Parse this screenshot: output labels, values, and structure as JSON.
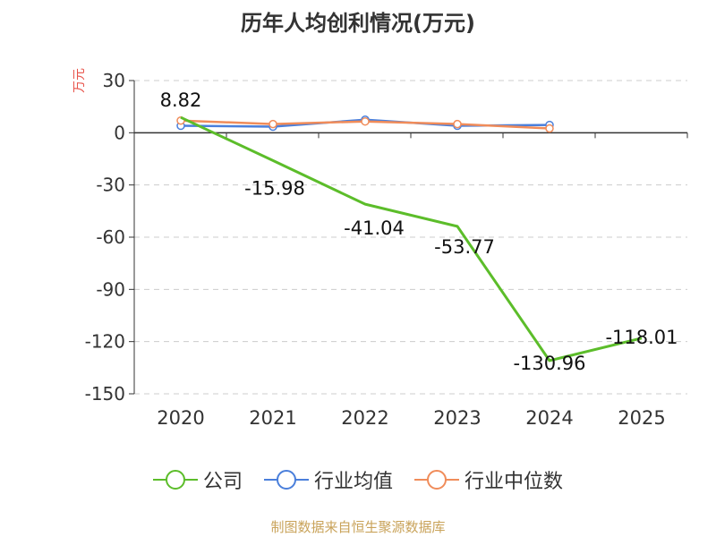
{
  "chart_data": {
    "type": "line",
    "title": "历年人均创利情况(万元)",
    "ylabel": "万元",
    "categories": [
      "2020",
      "2021",
      "2022",
      "2023",
      "2024",
      "2025"
    ],
    "ylim": [
      -150,
      30
    ],
    "yticks": [
      "30",
      "0",
      "-30",
      "-60",
      "-90",
      "-120",
      "-150"
    ],
    "grid": true,
    "legend_position": "bottom",
    "series": [
      {
        "name": "公司",
        "color": "#5cbd2a",
        "values": [
          8.82,
          -15.98,
          -41.04,
          -53.77,
          -130.96,
          -118.01
        ],
        "labels": [
          "8.82",
          "-15.98",
          "-41.04",
          "-53.77",
          "-130.96",
          "-118.01"
        ]
      },
      {
        "name": "行业均值",
        "color": "#4a7fdb",
        "values": [
          4.0,
          3.5,
          7.5,
          4.0,
          4.5,
          null
        ]
      },
      {
        "name": "行业中位数",
        "color": "#f08c5a",
        "values": [
          7.0,
          5.0,
          6.5,
          5.0,
          2.5,
          null
        ]
      }
    ]
  },
  "footer": {
    "source": "制图数据来自恒生聚源数据库"
  }
}
